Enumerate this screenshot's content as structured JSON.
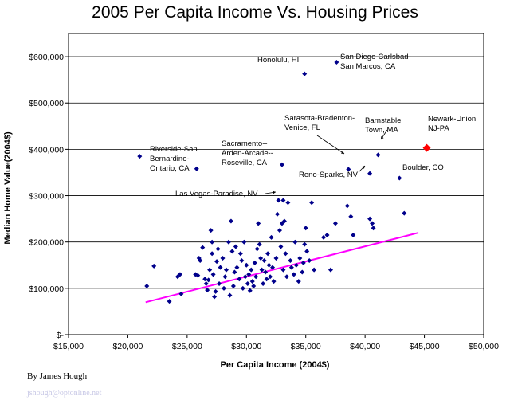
{
  "chart_data": {
    "type": "scatter",
    "title": "2005 Per Capita Income Vs. Housing Prices",
    "xlabel": "Per Capita Income (2004$)",
    "ylabel": "Median Home Value(2004$)",
    "xlim": [
      15000,
      50000
    ],
    "ylim": [
      0,
      650000
    ],
    "x_ticks": [
      15000,
      20000,
      25000,
      30000,
      35000,
      40000,
      45000,
      50000
    ],
    "x_tick_labels": [
      "$15,000",
      "$20,000",
      "$25,000",
      "$30,000",
      "$35,000",
      "$40,000",
      "$45,000",
      "$50,000"
    ],
    "y_ticks": [
      0,
      100000,
      200000,
      300000,
      400000,
      500000,
      600000
    ],
    "y_tick_labels": [
      "$-",
      "$100,000",
      "$200,000",
      "$300,000",
      "$400,000",
      "$500,000",
      "$600,000"
    ],
    "grid": "horizontal",
    "colors": {
      "points": "#00008b",
      "highlight": "#ff0000",
      "trendline": "#ff00ff"
    },
    "trendline": {
      "x": [
        21500,
        44500
      ],
      "y": [
        70000,
        220000
      ]
    },
    "highlight_point": {
      "x": 45200,
      "y": 403000
    },
    "points": [
      [
        21600,
        105000
      ],
      [
        22200,
        148000
      ],
      [
        23500,
        72000
      ],
      [
        24200,
        125000
      ],
      [
        24400,
        130000
      ],
      [
        24500,
        88000
      ],
      [
        25700,
        130000
      ],
      [
        25900,
        128000
      ],
      [
        26000,
        165000
      ],
      [
        26100,
        160000
      ],
      [
        26300,
        188000
      ],
      [
        26500,
        120000
      ],
      [
        26600,
        110000
      ],
      [
        26700,
        96000
      ],
      [
        26800,
        118000
      ],
      [
        26900,
        140000
      ],
      [
        27000,
        225000
      ],
      [
        27100,
        200000
      ],
      [
        27100,
        175000
      ],
      [
        27200,
        130000
      ],
      [
        27300,
        82000
      ],
      [
        27400,
        93000
      ],
      [
        27500,
        158000
      ],
      [
        27600,
        185000
      ],
      [
        27700,
        110000
      ],
      [
        27800,
        145000
      ],
      [
        28000,
        165000
      ],
      [
        28100,
        100000
      ],
      [
        28200,
        125000
      ],
      [
        28300,
        140000
      ],
      [
        28500,
        200000
      ],
      [
        28600,
        85000
      ],
      [
        28700,
        245000
      ],
      [
        28800,
        180000
      ],
      [
        28900,
        105000
      ],
      [
        29000,
        135000
      ],
      [
        29100,
        190000
      ],
      [
        29200,
        145000
      ],
      [
        29400,
        120000
      ],
      [
        29500,
        175000
      ],
      [
        29600,
        160000
      ],
      [
        29700,
        100000
      ],
      [
        29800,
        200000
      ],
      [
        29900,
        125000
      ],
      [
        30000,
        150000
      ],
      [
        30100,
        110000
      ],
      [
        30200,
        130000
      ],
      [
        30300,
        95000
      ],
      [
        30400,
        140000
      ],
      [
        30500,
        115000
      ],
      [
        30600,
        105000
      ],
      [
        30700,
        155000
      ],
      [
        30800,
        125000
      ],
      [
        30900,
        185000
      ],
      [
        31000,
        240000
      ],
      [
        31100,
        195000
      ],
      [
        31200,
        165000
      ],
      [
        31300,
        140000
      ],
      [
        31400,
        110000
      ],
      [
        31500,
        160000
      ],
      [
        31600,
        135000
      ],
      [
        31700,
        120000
      ],
      [
        31800,
        175000
      ],
      [
        31900,
        150000
      ],
      [
        32000,
        125000
      ],
      [
        32100,
        210000
      ],
      [
        32200,
        145000
      ],
      [
        32300,
        115000
      ],
      [
        32500,
        165000
      ],
      [
        32600,
        260000
      ],
      [
        32700,
        290000
      ],
      [
        32800,
        225000
      ],
      [
        32900,
        190000
      ],
      [
        33000,
        240000
      ],
      [
        33100,
        140000
      ],
      [
        33200,
        245000
      ],
      [
        33300,
        175000
      ],
      [
        33400,
        125000
      ],
      [
        33500,
        285000
      ],
      [
        33700,
        160000
      ],
      [
        33800,
        145000
      ],
      [
        34000,
        130000
      ],
      [
        34100,
        200000
      ],
      [
        34200,
        150000
      ],
      [
        34400,
        115000
      ],
      [
        34500,
        165000
      ],
      [
        34700,
        135000
      ],
      [
        34800,
        155000
      ],
      [
        34900,
        195000
      ],
      [
        35000,
        230000
      ],
      [
        35100,
        180000
      ],
      [
        35300,
        160000
      ],
      [
        35500,
        285000
      ],
      [
        35700,
        140000
      ],
      [
        36500,
        210000
      ],
      [
        36800,
        215000
      ],
      [
        37100,
        140000
      ],
      [
        37500,
        240000
      ],
      [
        38500,
        278000
      ],
      [
        38800,
        255000
      ],
      [
        39000,
        215000
      ],
      [
        40400,
        250000
      ],
      [
        40600,
        240000
      ],
      [
        40700,
        230000
      ],
      [
        43300,
        262000
      ],
      [
        21000,
        385000
      ],
      [
        25800,
        358000
      ],
      [
        33000,
        367000
      ],
      [
        33100,
        290000
      ],
      [
        34900,
        563000
      ],
      [
        37600,
        588000
      ],
      [
        38600,
        357000
      ],
      [
        40400,
        348000
      ],
      [
        41100,
        388000
      ],
      [
        42900,
        338000
      ]
    ],
    "annotations": [
      {
        "text": [
          "Honolulu, HI"
        ],
        "x": 34900,
        "y": 563000
      },
      {
        "text": [
          "San Diego-Carlsbad-",
          "San Marcos, CA"
        ],
        "x": 37600,
        "y": 588000
      },
      {
        "text": [
          "Sarasota-Bradenton-",
          "Venice, FL"
        ],
        "x": 38600,
        "y": 357000
      },
      {
        "text": [
          "Barnstable",
          "Town, MA"
        ],
        "x": 41100,
        "y": 388000
      },
      {
        "text": [
          "Newark-Union",
          "NJ-PA"
        ],
        "x": 45200,
        "y": 403000
      },
      {
        "text": [
          "Riverside-San",
          "Bernardino-",
          "Ontario, CA"
        ],
        "x": 25800,
        "y": 358000
      },
      {
        "text": [
          "Sacramento--",
          "Arden-Arcade--",
          "Roseville, CA"
        ],
        "x": 33000,
        "y": 367000
      },
      {
        "text": [
          "Boulder, CO"
        ],
        "x": 42900,
        "y": 338000
      },
      {
        "text": [
          "Reno-Sparks, NV"
        ],
        "x": 40400,
        "y": 348000
      },
      {
        "text": [
          "Las Vegas-Paradise, NV"
        ],
        "x": 33100,
        "y": 290000
      }
    ]
  },
  "credit": "By James Hough",
  "email": "jshough@optonline.net"
}
